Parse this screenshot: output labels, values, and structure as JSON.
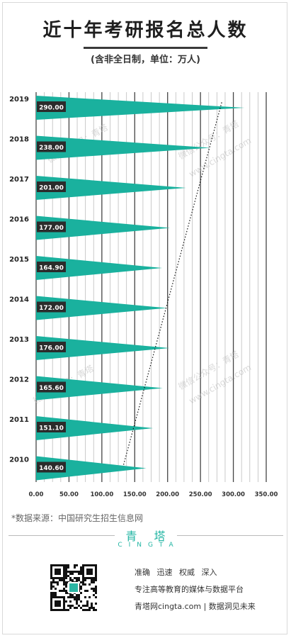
{
  "title": "近十年考研报名总人数",
  "subtitle": "(含非全日制，单位：万人)",
  "chart_data": {
    "type": "bar",
    "orientation": "horizontal",
    "bar_shape": "triangle",
    "categories": [
      "2010",
      "2011",
      "2012",
      "2013",
      "2014",
      "2015",
      "2016",
      "2017",
      "2018",
      "2019"
    ],
    "values": [
      140.6,
      151.1,
      165.6,
      176.0,
      172.0,
      164.9,
      177.0,
      201.0,
      238.0,
      290.0
    ],
    "value_labels": [
      "140.60",
      "151.10",
      "165.60",
      "176.00",
      "172.00",
      "164.90",
      "177.00",
      "201.00",
      "238.00",
      "290.00"
    ],
    "xticks": [
      "0.00",
      "50.00",
      "100.00",
      "150.00",
      "200.00",
      "250.00",
      "300.00",
      "350.00"
    ],
    "xlim": [
      0,
      350
    ],
    "trendline": "dotted",
    "grid": true,
    "colors": {
      "bar": "#1ab19e",
      "label_bg": "#2b2b2b",
      "label_text": "#ffffff"
    }
  },
  "watermarks": [
    "微信公众号：青塔",
    "www.cingta.com"
  ],
  "source": "*数据来源：中国研究生招生信息网",
  "footer": {
    "brand": "青塔",
    "brand_sub": "CINGTA",
    "tagline1": "准确 迅速 权威 深入",
    "tagline2": "专注高等教育的媒体与数据平台",
    "tagline3": "青塔网cingta.com | 数据洞见未来"
  }
}
